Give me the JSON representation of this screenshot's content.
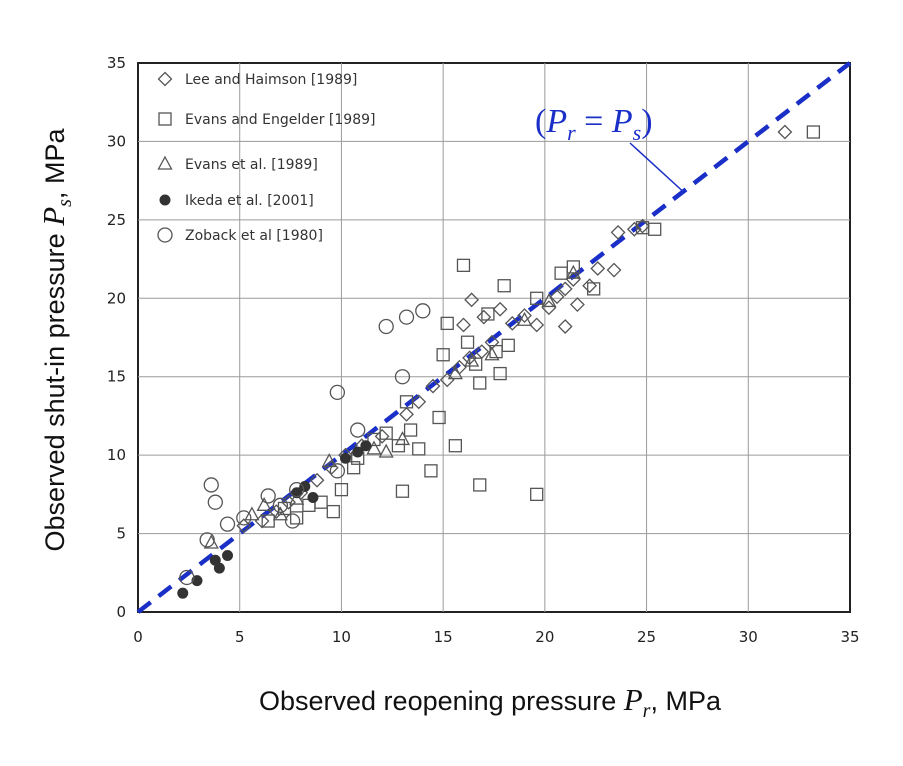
{
  "chart_data": {
    "type": "scatter",
    "title": "",
    "xlabel": "Observed reopening pressure",
    "xlabel_symbol": "P",
    "xlabel_sub": "r",
    "xlabel_unit": ", MPa",
    "ylabel": "Observed shut-in pressure",
    "ylabel_symbol": "P",
    "ylabel_sub": "s",
    "ylabel_unit": ", MPa",
    "xlim": [
      0,
      35
    ],
    "ylim": [
      0,
      35
    ],
    "xticks": [
      0,
      5,
      10,
      15,
      20,
      25,
      30,
      35
    ],
    "yticks": [
      0,
      5,
      10,
      15,
      20,
      25,
      30,
      35
    ],
    "grid": true,
    "legend_position": "top-left",
    "reference_line": {
      "label_open": "(",
      "label_left": "P",
      "label_left_sub": "r",
      "label_eq": " = ",
      "label_right": "P",
      "label_right_sub": "s",
      "label_close": ")",
      "color": "#1a2fc8",
      "from": [
        0,
        0
      ],
      "to": [
        35,
        35
      ]
    },
    "series": [
      {
        "name": "Lee and Haimson [1989]",
        "marker": "diamond",
        "points": [
          [
            5.2,
            5.5
          ],
          [
            6.1,
            5.8
          ],
          [
            6.8,
            6.4
          ],
          [
            7.4,
            7.0
          ],
          [
            8.0,
            7.6
          ],
          [
            8.8,
            8.4
          ],
          [
            9.5,
            9.2
          ],
          [
            10.2,
            10.0
          ],
          [
            11.0,
            10.6
          ],
          [
            12.0,
            11.2
          ],
          [
            13.2,
            12.6
          ],
          [
            13.8,
            13.4
          ],
          [
            14.5,
            14.4
          ],
          [
            15.2,
            14.8
          ],
          [
            15.8,
            15.6
          ],
          [
            16.3,
            16.2
          ],
          [
            16.9,
            16.6
          ],
          [
            17.4,
            17.2
          ],
          [
            16.0,
            18.3
          ],
          [
            16.4,
            19.9
          ],
          [
            17.0,
            18.8
          ],
          [
            17.8,
            19.3
          ],
          [
            18.4,
            18.4
          ],
          [
            19.0,
            18.9
          ],
          [
            19.6,
            18.3
          ],
          [
            20.2,
            19.4
          ],
          [
            20.6,
            20.1
          ],
          [
            21.0,
            20.6
          ],
          [
            21.4,
            21.2
          ],
          [
            21.0,
            18.2
          ],
          [
            21.6,
            19.6
          ],
          [
            22.2,
            20.8
          ],
          [
            22.6,
            21.9
          ],
          [
            23.4,
            21.8
          ],
          [
            23.6,
            24.2
          ],
          [
            24.4,
            24.4
          ],
          [
            24.8,
            24.6
          ],
          [
            31.8,
            30.6
          ]
        ]
      },
      {
        "name": "Evans and Engelder [1989]",
        "marker": "square",
        "points": [
          [
            33.2,
            30.6
          ],
          [
            25.4,
            24.4
          ],
          [
            24.8,
            24.5
          ],
          [
            16.0,
            22.1
          ],
          [
            18.0,
            20.8
          ],
          [
            21.4,
            22.0
          ],
          [
            20.8,
            21.6
          ],
          [
            22.4,
            20.6
          ],
          [
            19.6,
            20.0
          ],
          [
            17.2,
            19.0
          ],
          [
            15.2,
            18.4
          ],
          [
            16.2,
            17.2
          ],
          [
            17.6,
            16.6
          ],
          [
            18.2,
            17.0
          ],
          [
            15.0,
            16.4
          ],
          [
            16.6,
            15.8
          ],
          [
            17.8,
            15.2
          ],
          [
            16.8,
            14.6
          ],
          [
            14.8,
            12.4
          ],
          [
            13.2,
            13.4
          ],
          [
            13.4,
            11.6
          ],
          [
            13.8,
            10.4
          ],
          [
            15.6,
            10.6
          ],
          [
            14.4,
            9.0
          ],
          [
            12.8,
            10.6
          ],
          [
            12.2,
            11.4
          ],
          [
            11.6,
            11.0
          ],
          [
            10.8,
            9.8
          ],
          [
            10.6,
            9.2
          ],
          [
            10.0,
            7.8
          ],
          [
            9.6,
            6.4
          ],
          [
            9.0,
            7.0
          ],
          [
            8.4,
            6.8
          ],
          [
            7.8,
            6.0
          ],
          [
            7.2,
            6.6
          ],
          [
            6.4,
            5.8
          ],
          [
            13.0,
            7.7
          ],
          [
            16.8,
            8.1
          ],
          [
            19.6,
            7.5
          ]
        ]
      },
      {
        "name": "Evans et al. [1989]",
        "marker": "triangle",
        "points": [
          [
            3.6,
            4.4
          ],
          [
            5.6,
            6.2
          ],
          [
            6.2,
            6.8
          ],
          [
            7.0,
            6.2
          ],
          [
            7.8,
            7.2
          ],
          [
            9.4,
            9.6
          ],
          [
            11.6,
            10.4
          ],
          [
            12.2,
            10.2
          ],
          [
            13.0,
            11.0
          ],
          [
            15.6,
            15.2
          ],
          [
            16.4,
            16.0
          ],
          [
            17.4,
            16.4
          ],
          [
            19.0,
            18.6
          ],
          [
            20.2,
            19.8
          ],
          [
            21.4,
            21.6
          ]
        ]
      },
      {
        "name": "Ikeda et al. [2001]",
        "marker": "filled-circle",
        "points": [
          [
            2.2,
            1.2
          ],
          [
            2.9,
            2.0
          ],
          [
            4.0,
            2.8
          ],
          [
            4.4,
            3.6
          ],
          [
            3.8,
            3.3
          ],
          [
            7.8,
            7.6
          ],
          [
            8.6,
            7.3
          ],
          [
            8.2,
            8.0
          ],
          [
            10.8,
            10.2
          ],
          [
            11.2,
            10.6
          ],
          [
            10.2,
            9.8
          ]
        ]
      },
      {
        "name": "Zoback et al [1980]",
        "marker": "open-circle",
        "points": [
          [
            2.4,
            2.2
          ],
          [
            3.4,
            4.6
          ],
          [
            3.6,
            8.1
          ],
          [
            3.8,
            7.0
          ],
          [
            4.4,
            5.6
          ],
          [
            5.2,
            6.0
          ],
          [
            6.4,
            7.4
          ],
          [
            7.0,
            6.8
          ],
          [
            7.6,
            5.8
          ],
          [
            7.8,
            7.8
          ],
          [
            9.8,
            14.0
          ],
          [
            10.8,
            11.6
          ],
          [
            12.2,
            18.2
          ],
          [
            13.2,
            18.8
          ],
          [
            14.0,
            19.2
          ],
          [
            13.0,
            15.0
          ],
          [
            9.8,
            9.0
          ]
        ]
      }
    ]
  }
}
